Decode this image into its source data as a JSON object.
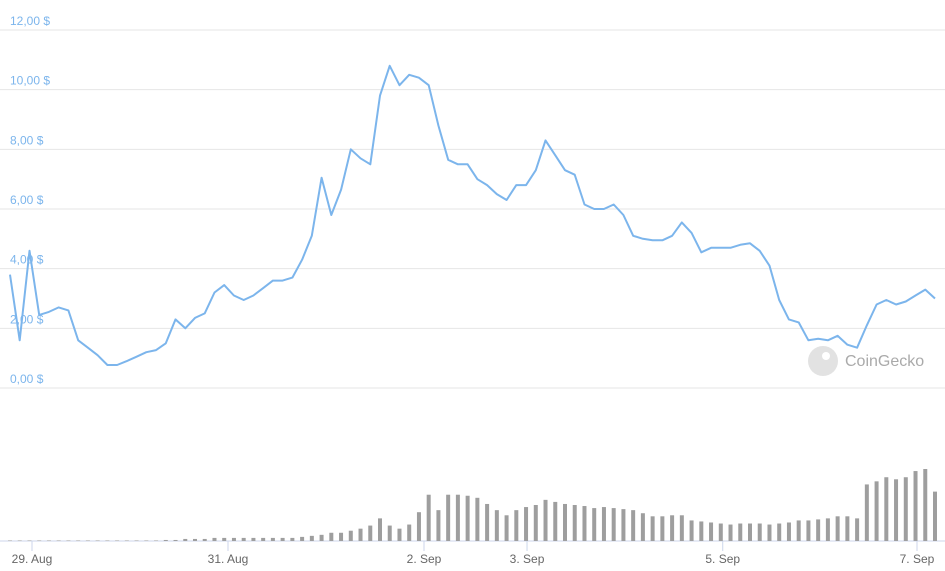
{
  "chart_data": {
    "type": "line",
    "series": [
      {
        "color": "#7cb5ec",
        "values": [
          3.8,
          1.6,
          4.6,
          2.45,
          2.55,
          2.7,
          2.6,
          1.6,
          1.35,
          1.1,
          0.77,
          0.77,
          0.9,
          1.05,
          1.2,
          1.27,
          1.5,
          2.3,
          2.0,
          2.35,
          2.5,
          3.2,
          3.45,
          3.1,
          2.95,
          3.1,
          3.35,
          3.6,
          3.6,
          3.7,
          4.3,
          5.1,
          7.05,
          5.8,
          6.65,
          8.0,
          7.7,
          7.5,
          9.8,
          10.8,
          10.15,
          10.5,
          10.4,
          10.15,
          8.8,
          7.65,
          7.5,
          7.5,
          7.0,
          6.8,
          6.5,
          6.3,
          6.8,
          6.8,
          7.3,
          8.3,
          7.8,
          7.3,
          7.15,
          6.15,
          6.0,
          6.0,
          6.15,
          5.8,
          5.1,
          5.0,
          4.95,
          4.95,
          5.1,
          5.55,
          5.2,
          4.55,
          4.7,
          4.7,
          4.7,
          4.8,
          4.85,
          4.6,
          4.1,
          2.95,
          2.3,
          2.2,
          1.6,
          1.65,
          1.6,
          1.75,
          1.45,
          1.35,
          2.1,
          2.8,
          2.95,
          2.8,
          2.9,
          3.1,
          3.3,
          3.0
        ]
      }
    ],
    "volume": {
      "color": "#9e9e9e",
      "values": [
        0.5,
        0.5,
        0.5,
        0.5,
        0.5,
        0.5,
        0.5,
        0.5,
        0.5,
        0.5,
        0.5,
        0.5,
        0.5,
        0.5,
        0.5,
        0.5,
        1,
        1,
        2,
        2,
        2,
        3,
        3,
        3,
        3,
        3,
        3,
        3,
        3,
        3,
        4,
        5,
        6,
        8,
        8,
        10,
        12,
        15,
        22,
        15,
        12,
        16,
        28,
        45,
        30,
        45,
        45,
        44,
        42,
        36,
        30,
        25,
        30,
        33,
        35,
        40,
        38,
        36,
        35,
        34,
        32,
        33,
        32,
        31,
        30,
        27,
        24,
        24,
        25,
        25,
        20,
        19,
        18,
        17,
        16,
        17,
        17,
        17,
        16,
        17,
        18,
        20,
        20,
        21,
        22,
        24,
        24,
        22,
        55,
        58,
        62,
        60,
        62,
        68,
        70,
        48
      ]
    },
    "xlim": [
      0,
      95
    ],
    "xticks": [
      {
        "value": 2.26,
        "label": "29. Aug"
      },
      {
        "value": 22.39,
        "label": "31. Aug"
      },
      {
        "value": 42.52,
        "label": "2. Sep"
      },
      {
        "value": 53.1,
        "label": "3. Sep"
      },
      {
        "value": 73.2,
        "label": "5. Sep"
      },
      {
        "value": 93.15,
        "label": "7. Sep"
      }
    ],
    "ylim": [
      0,
      12
    ],
    "yticks": [
      {
        "value": 0,
        "label": "0,00 $"
      },
      {
        "value": 2,
        "label": "2,00 $"
      },
      {
        "value": 4,
        "label": "4,00 $"
      },
      {
        "value": 6,
        "label": "6,00 $"
      },
      {
        "value": 8,
        "label": "8,00 $"
      },
      {
        "value": 10,
        "label": "10,00 $"
      },
      {
        "value": 12,
        "label": "12,00 $"
      }
    ],
    "grid": true,
    "watermark": "CoinGecko"
  }
}
